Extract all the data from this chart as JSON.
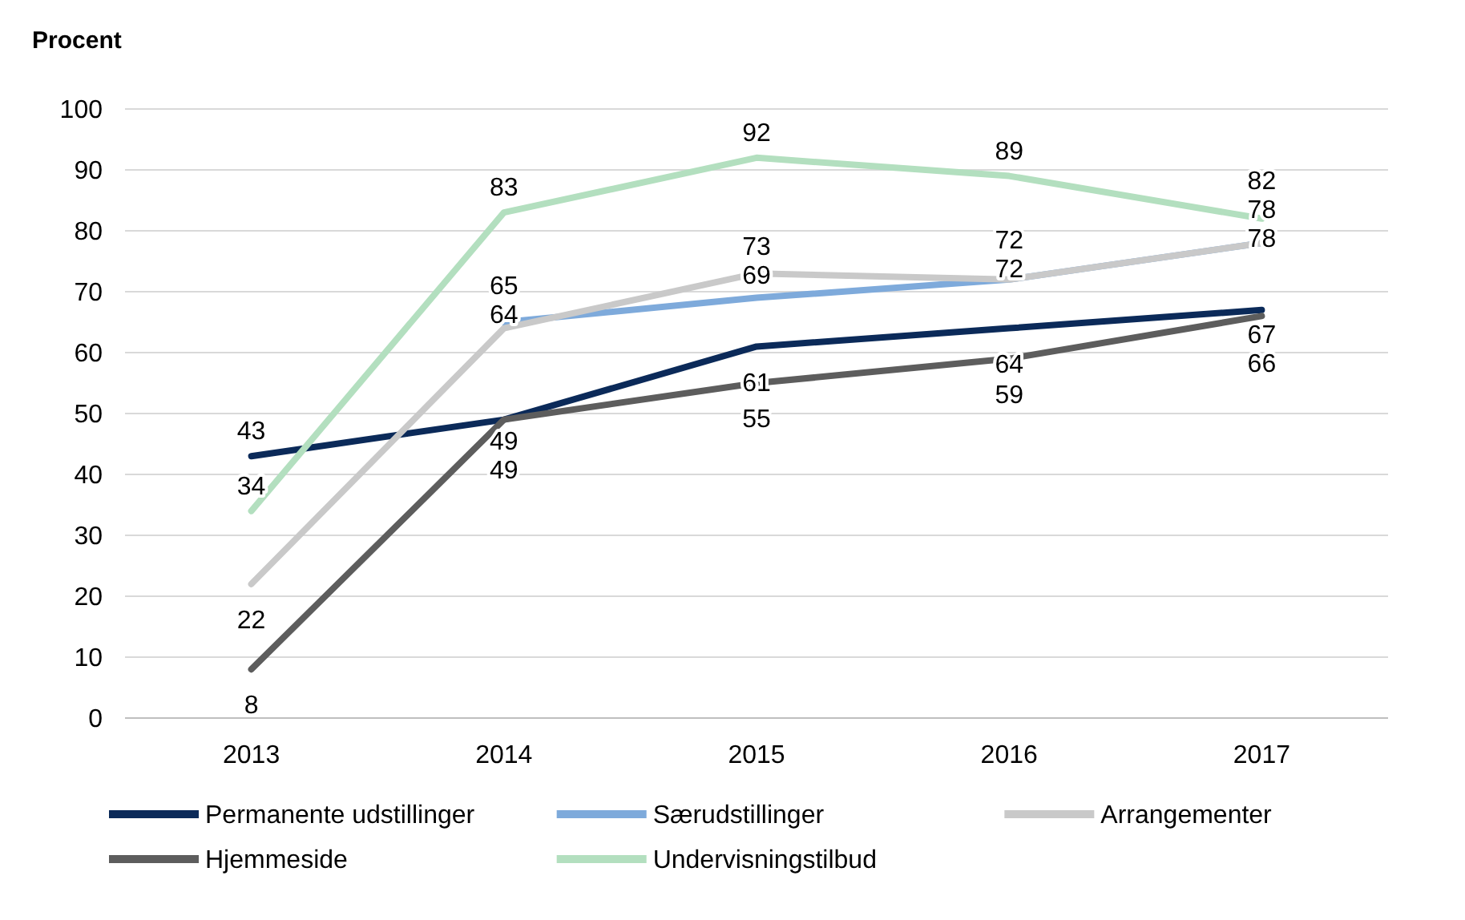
{
  "chart_data": {
    "type": "line",
    "ylabel": "Procent",
    "categories": [
      "2013",
      "2014",
      "2015",
      "2016",
      "2017"
    ],
    "series": [
      {
        "name": "Permanente udstillinger",
        "color": "#0b2a59",
        "values": [
          43,
          49,
          61,
          64,
          67
        ]
      },
      {
        "name": "Særudstillinger",
        "color": "#7eaadb",
        "values": [
          null,
          65,
          69,
          72,
          78
        ]
      },
      {
        "name": "Arrangementer",
        "color": "#c9c9c9",
        "values": [
          22,
          64,
          73,
          72,
          78
        ]
      },
      {
        "name": "Hjemmeside",
        "color": "#5d5d5d",
        "values": [
          8,
          49,
          55,
          59,
          66
        ]
      },
      {
        "name": "Undervisningstilbud",
        "color": "#b3dfbf",
        "values": [
          34,
          83,
          92,
          89,
          82
        ]
      }
    ],
    "ylim": [
      0,
      100
    ],
    "yticks": [
      0,
      10,
      20,
      30,
      40,
      50,
      60,
      70,
      80,
      90,
      100
    ],
    "grid": "y",
    "legend": "bottom",
    "data_labels": true,
    "marker": "none",
    "line_style": "solid"
  }
}
